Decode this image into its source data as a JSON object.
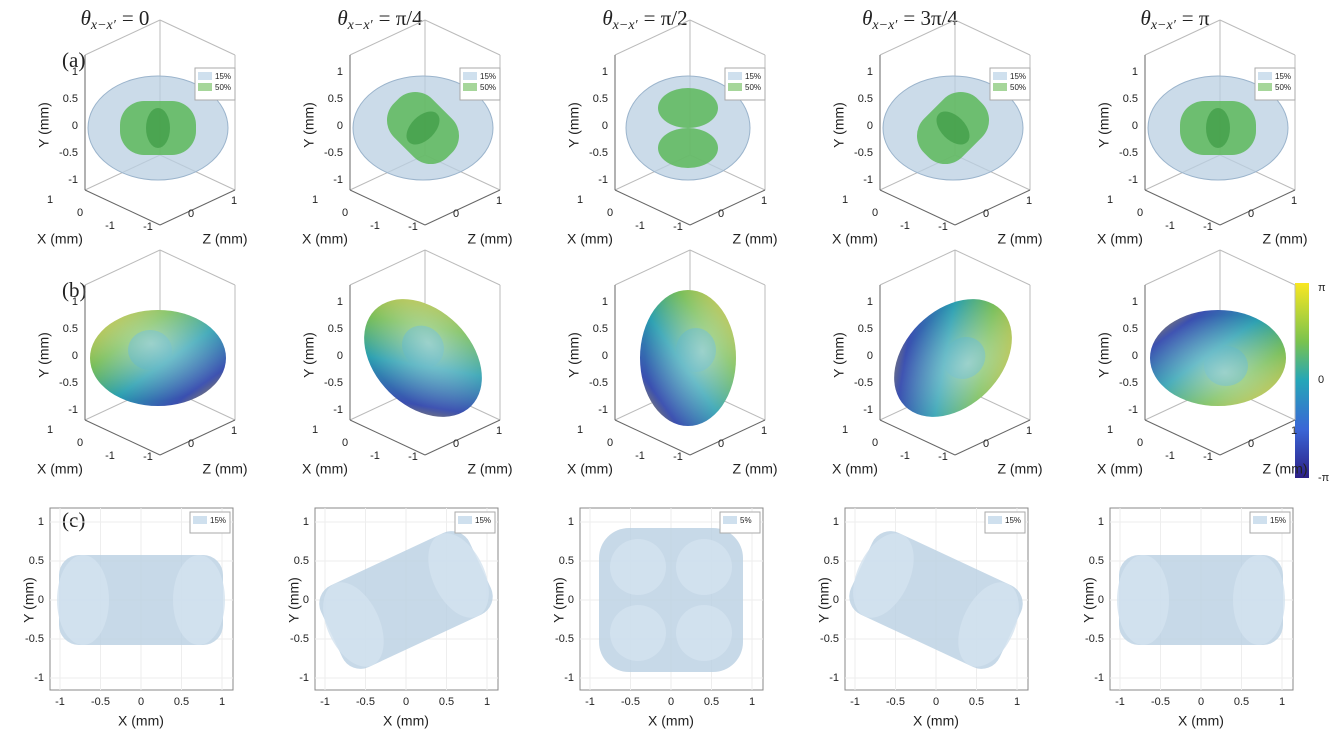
{
  "columns": [
    {
      "variable": "θ",
      "subscript": "x−x′",
      "value": "= 0"
    },
    {
      "variable": "θ",
      "subscript": "x−x′",
      "value": "= π/4"
    },
    {
      "variable": "θ",
      "subscript": "x−x′",
      "value": "= π/2"
    },
    {
      "variable": "θ",
      "subscript": "x−x′",
      "value": "= 3π/4"
    },
    {
      "variable": "θ",
      "subscript": "x−x′",
      "value": "= π"
    }
  ],
  "rows": [
    {
      "label": "(a)",
      "legends": [
        [
          "15%",
          "50%"
        ],
        [
          "15%",
          "50%"
        ],
        [
          "15%",
          "50%"
        ],
        [
          "15%",
          "50%"
        ],
        [
          "15%",
          "50%"
        ]
      ]
    },
    {
      "label": "(b)"
    },
    {
      "label": "(c)",
      "legends": [
        [
          "15%"
        ],
        [
          "15%"
        ],
        [
          "5%"
        ],
        [
          "15%"
        ],
        [
          "15%"
        ]
      ]
    }
  ],
  "axes_3d": {
    "x_label": "X (mm)",
    "y_label": "Y (mm)",
    "z_label": "Z (mm)",
    "y_ticks": [
      1,
      0.5,
      0,
      -0.5,
      -1
    ],
    "x_ticks": [
      1,
      0,
      -1
    ],
    "z_ticks": [
      -1,
      0,
      1
    ]
  },
  "axes_2d": {
    "x_label": "X (mm)",
    "y_label": "Y (mm)",
    "x_ticks": [
      -1,
      -0.5,
      0,
      0.5,
      1
    ],
    "y_ticks": [
      1,
      0.5,
      0,
      -0.5,
      -1
    ]
  },
  "colorbar": {
    "labels": [
      "π",
      "0",
      "-π"
    ]
  }
}
